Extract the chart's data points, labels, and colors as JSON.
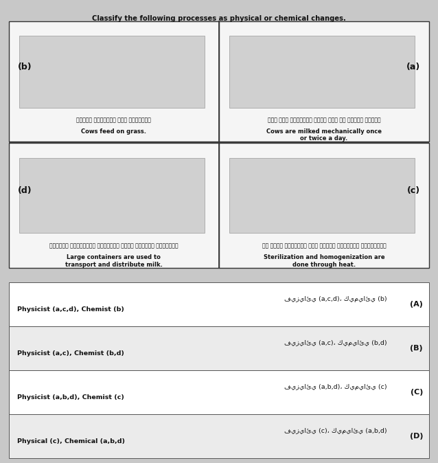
{
  "title": "Classify the following processes as physical or chemical changes.",
  "bg_color": "#c8c8c8",
  "panel_bg": "#e0e0e0",
  "border_color": "#333333",
  "labels": {
    "b_label": "(b)",
    "a_label": "(a)",
    "d_label": "(d)",
    "c_label": "(c)"
  },
  "captions": {
    "b_arabic": "تتغذى الأبقار على الحشائش",
    "b_english": "Cows feed on grass.",
    "a_arabic": "يتم حلب الأبقار آليا مره او مرتين يوميا",
    "a_english": "Cows are milked mechanically once\nor twice a day.",
    "d_arabic": "تستخدم الحاويات الكبيره لنقل الحليب وتوزيعه",
    "d_english": "Large containers are used to\ntransport and distribute milk.",
    "c_arabic": "عن طريق الحرارة تتم عملية التعقيم والتجانس",
    "c_english": "Sterilization and homogenization are\ndone through heat."
  },
  "options": [
    {
      "letter": "A",
      "arabic": "فيزيائي (a,c,d)، كيميائي (b)",
      "english": "Physicist (a,c,d), Chemist (b)"
    },
    {
      "letter": "B",
      "arabic": "فيزيائي (a,c)، كيميائي (b,d)",
      "english": "Physicist (a,c), Chemist (b,d)"
    },
    {
      "letter": "C",
      "arabic": "فيزيائي (a,b,d)، كيميائي (c)",
      "english": "Physicist (a,b,d), Chemist (c)"
    },
    {
      "letter": "D",
      "arabic": "فيزيائي (c)، كيميائي (a,b,d)",
      "english": "Physical (c), Chemical (a,b,d)"
    }
  ],
  "text_color": "#111111",
  "table_border": "#555555",
  "table_bg": "#f0f0f0",
  "divider_color": "#555555"
}
